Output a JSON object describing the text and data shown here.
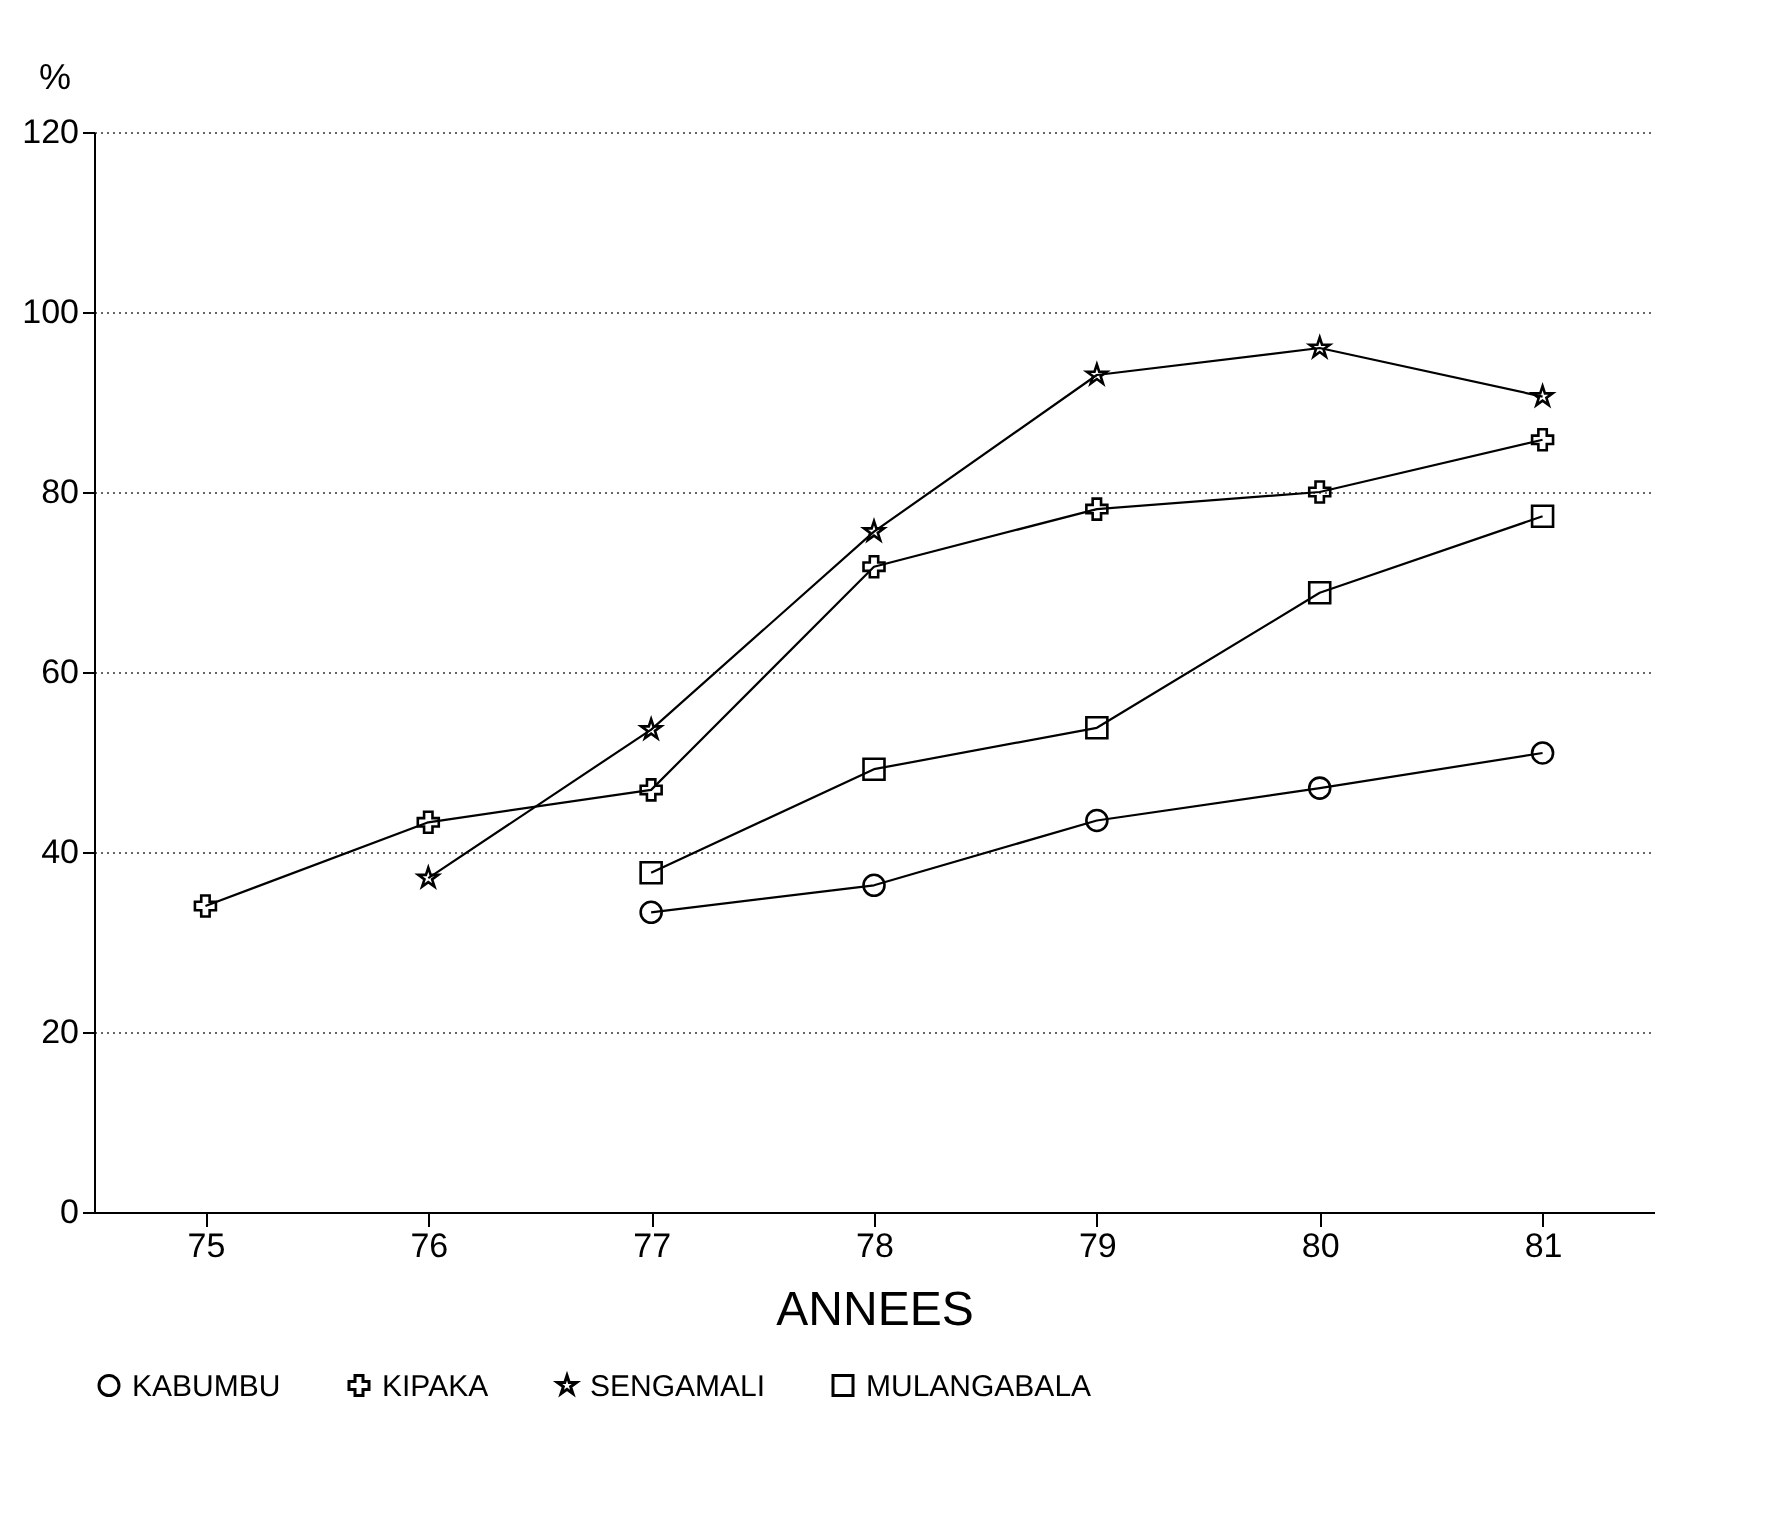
{
  "chart_data": {
    "type": "line",
    "xlabel": "ANNEES",
    "ylabel": "%",
    "x": [
      75,
      76,
      77,
      78,
      79,
      80,
      81
    ],
    "xlim": [
      74.5,
      81.5
    ],
    "xticks": [
      75,
      76,
      77,
      78,
      79,
      80,
      81
    ],
    "ylim": [
      0,
      120
    ],
    "yticks": [
      0,
      20,
      40,
      60,
      80,
      100,
      120
    ],
    "grid": "y",
    "legend": "bottom",
    "line_style": "solid",
    "series": [
      {
        "name": "KABUMBU",
        "color": "#000000",
        "marker": "circle",
        "values": [
          null,
          null,
          33.3,
          36.3,
          43.5,
          47.1,
          51
        ]
      },
      {
        "name": "KIPAKA",
        "color": "#000000",
        "marker": "cross",
        "values": [
          34,
          43.3,
          46.9,
          71.7,
          78.1,
          80,
          85.8
        ]
      },
      {
        "name": "SENGAMALI",
        "color": "#000000",
        "marker": "star",
        "values": [
          null,
          37.1,
          53.6,
          75.6,
          93,
          96,
          90.6
        ]
      },
      {
        "name": "MULANGABALA",
        "color": "#000000",
        "marker": "square",
        "values": [
          null,
          null,
          37.7,
          49.2,
          53.8,
          68.8,
          77.3
        ]
      }
    ]
  }
}
